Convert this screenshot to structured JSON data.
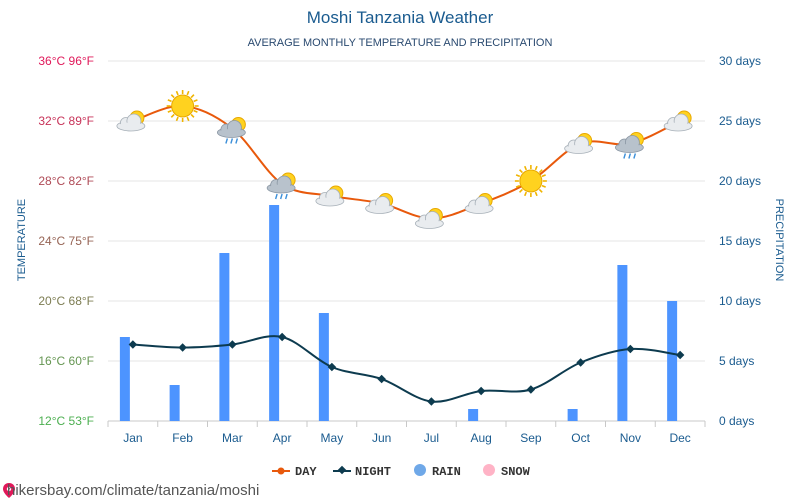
{
  "chart_data": {
    "type": "line",
    "title": "Moshi Tanzania Weather",
    "subtitle": "AVERAGE MONTHLY TEMPERATURE AND PRECIPITATION",
    "categories": [
      "Jan",
      "Feb",
      "Mar",
      "Apr",
      "May",
      "Jun",
      "Jul",
      "Aug",
      "Sep",
      "Oct",
      "Nov",
      "Dec"
    ],
    "y_left": {
      "label": "TEMPERATURE",
      "range": [
        12,
        36
      ],
      "unit": "°C",
      "ticks": [
        "12°C 53°F",
        "16°C 60°F",
        "20°C 68°F",
        "24°C 75°F",
        "28°C 82°F",
        "32°C 89°F",
        "36°C 96°F"
      ]
    },
    "y_right": {
      "label": "PRECIPITATION",
      "range": [
        0,
        30
      ],
      "unit": "days",
      "ticks": [
        "0 days",
        "5 days",
        "10 days",
        "15 days",
        "20 days",
        "25 days",
        "30 days"
      ]
    },
    "series": [
      {
        "name": "DAY",
        "kind": "line",
        "axis": "left",
        "color": "#e8590c",
        "values": [
          32.0,
          33.0,
          31.5,
          27.8,
          27.0,
          26.5,
          25.5,
          26.5,
          28.0,
          30.5,
          30.5,
          32.0
        ]
      },
      {
        "name": "NIGHT",
        "kind": "line",
        "axis": "left",
        "color": "#0d3b4f",
        "values": [
          17.1,
          16.9,
          17.1,
          17.6,
          15.6,
          14.8,
          13.3,
          14.0,
          14.1,
          15.9,
          16.8,
          16.4
        ]
      },
      {
        "name": "RAIN",
        "kind": "bar",
        "axis": "right",
        "color": "#4d94ff",
        "values": [
          7,
          3,
          14,
          18,
          9,
          0,
          0,
          1,
          0,
          1,
          13,
          10
        ]
      },
      {
        "name": "SNOW",
        "kind": "bar",
        "axis": "right",
        "color": "#ffb3c6",
        "values": [
          0,
          0,
          0,
          0,
          0,
          0,
          0,
          0,
          0,
          0,
          0,
          0
        ]
      }
    ],
    "weather_icons": [
      "partly-cloudy",
      "sunny",
      "rain-showers",
      "rain-showers",
      "partly-cloudy",
      "partly-cloudy",
      "partly-cloudy",
      "partly-cloudy",
      "sunny",
      "partly-cloudy",
      "rain-showers",
      "partly-cloudy"
    ],
    "grid": true,
    "legend_position": "bottom-center"
  },
  "legend": {
    "day": "DAY",
    "night": "NIGHT",
    "rain": "RAIN",
    "snow": "SNOW"
  },
  "colors": {
    "tick_left_top": "#e0195a",
    "tick_left_bottom": "#4caf50",
    "accent": "#1a5b8f"
  },
  "footer": {
    "url": "hikersbay.com/climate/tanzania/moshi"
  }
}
